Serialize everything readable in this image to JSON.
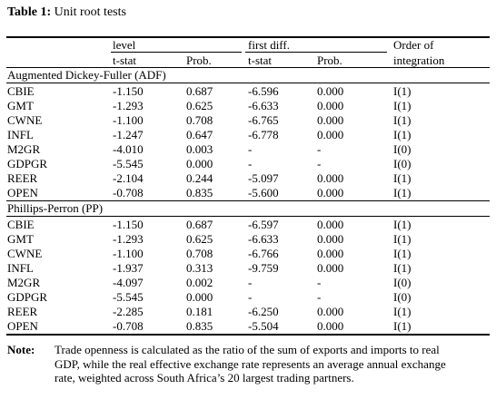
{
  "table": {
    "title_bold": "Table 1:",
    "title_rest": " Unit root tests",
    "header": {
      "level": "level",
      "first_diff": "first diff.",
      "order_line1": "Order of",
      "order_line2": "integration",
      "tstat": "t-stat",
      "prob": "Prob."
    },
    "sections": [
      {
        "name": "Augmented Dickey-Fuller (ADF)",
        "rows": [
          {
            "var": "CBIE",
            "l_t": "-1.150",
            "l_p": "0.687",
            "f_t": "-6.596",
            "f_p": "0.000",
            "ord": "I(1)"
          },
          {
            "var": "GMT",
            "l_t": "-1.293",
            "l_p": "0.625",
            "f_t": "-6.633",
            "f_p": "0.000",
            "ord": "I(1)"
          },
          {
            "var": "CWNE",
            "l_t": "-1.100",
            "l_p": "0.708",
            "f_t": "-6.765",
            "f_p": "0.000",
            "ord": "I(1)"
          },
          {
            "var": "INFL",
            "l_t": "-1.247",
            "l_p": "0.647",
            "f_t": "-6.778",
            "f_p": "0.000",
            "ord": "I(1)"
          },
          {
            "var": "M2GR",
            "l_t": "-4.010",
            "l_p": "0.003",
            "f_t": "-",
            "f_p": "-",
            "ord": "I(0)"
          },
          {
            "var": "GDPGR",
            "l_t": "-5.545",
            "l_p": "0.000",
            "f_t": "-",
            "f_p": "-",
            "ord": "I(0)"
          },
          {
            "var": "REER",
            "l_t": "-2.104",
            "l_p": "0.244",
            "f_t": "-5.097",
            "f_p": "0.000",
            "ord": "I(1)"
          },
          {
            "var": "OPEN",
            "l_t": "-0.708",
            "l_p": "0.835",
            "f_t": "-5.600",
            "f_p": "0.000",
            "ord": "I(1)"
          }
        ]
      },
      {
        "name": "Phillips-Perron (PP)",
        "rows": [
          {
            "var": "CBIE",
            "l_t": "-1.150",
            "l_p": "0.687",
            "f_t": "-6.597",
            "f_p": "0.000",
            "ord": "I(1)"
          },
          {
            "var": "GMT",
            "l_t": "-1.293",
            "l_p": "0.625",
            "f_t": "-6.633",
            "f_p": "0.000",
            "ord": "I(1)"
          },
          {
            "var": "CWNE",
            "l_t": "-1.100",
            "l_p": "0.708",
            "f_t": "-6.766",
            "f_p": "0.000",
            "ord": "I(1)"
          },
          {
            "var": "INFL",
            "l_t": "-1.937",
            "l_p": "0.313",
            "f_t": "-9.759",
            "f_p": "0.000",
            "ord": "I(1)"
          },
          {
            "var": "M2GR",
            "l_t": "-4.097",
            "l_p": "0.002",
            "f_t": "-",
            "f_p": "-",
            "ord": "I(0)"
          },
          {
            "var": "GDPGR",
            "l_t": "-5.545",
            "l_p": "0.000",
            "f_t": "-",
            "f_p": "-",
            "ord": "I(0)"
          },
          {
            "var": "REER",
            "l_t": "-2.285",
            "l_p": "0.181",
            "f_t": "-6.250",
            "f_p": "0.000",
            "ord": "I(1)"
          },
          {
            "var": "OPEN",
            "l_t": "-0.708",
            "l_p": "0.835",
            "f_t": "-5.504",
            "f_p": "0.000",
            "ord": "I(1)"
          }
        ]
      }
    ]
  },
  "note": {
    "label": "Note:",
    "text": "Trade openness is calculated as the ratio of the sum of exports and imports to real GDP, while the real effective exchange rate represents an average annual exchange rate, weighted across South Africa’s 20 largest trading partners."
  }
}
